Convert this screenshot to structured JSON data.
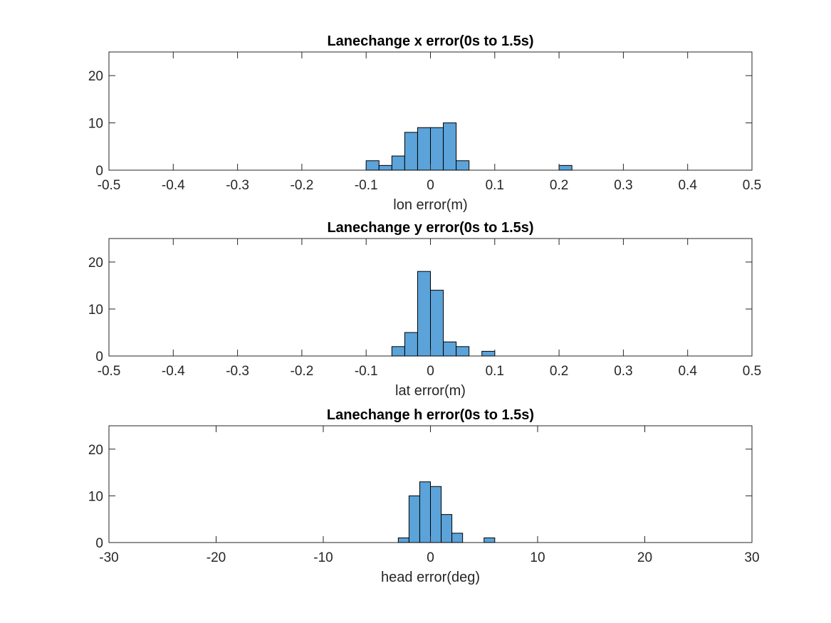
{
  "figure": {
    "bar_color": "#5ba3d9",
    "edge_color": "#000000",
    "axis_color": "#262626"
  },
  "chart_data": [
    {
      "type": "bar",
      "title": "Lanechange x error(0s to 1.5s)",
      "xlabel": "lon error(m)",
      "ylabel": "",
      "xlim": [
        -0.5,
        0.5
      ],
      "ylim": [
        0,
        25
      ],
      "xticks": [
        -0.5,
        -0.4,
        -0.3,
        -0.2,
        -0.1,
        0,
        0.1,
        0.2,
        0.3,
        0.4,
        0.5
      ],
      "xtick_labels": [
        "-0.5",
        "-0.4",
        "-0.3",
        "-0.2",
        "-0.1",
        "0",
        "0.1",
        "0.2",
        "0.3",
        "0.4",
        "0.5"
      ],
      "yticks": [
        0,
        10,
        20
      ],
      "ytick_labels": [
        "0",
        "10",
        "20"
      ],
      "grid": false,
      "bins": [
        {
          "x0": -0.1,
          "x1": -0.08,
          "count": 2
        },
        {
          "x0": -0.08,
          "x1": -0.06,
          "count": 1
        },
        {
          "x0": -0.06,
          "x1": -0.04,
          "count": 3
        },
        {
          "x0": -0.04,
          "x1": -0.02,
          "count": 8
        },
        {
          "x0": -0.02,
          "x1": 0.0,
          "count": 9
        },
        {
          "x0": 0.0,
          "x1": 0.02,
          "count": 9
        },
        {
          "x0": 0.02,
          "x1": 0.04,
          "count": 10
        },
        {
          "x0": 0.04,
          "x1": 0.06,
          "count": 2
        },
        {
          "x0": 0.2,
          "x1": 0.22,
          "count": 1
        }
      ]
    },
    {
      "type": "bar",
      "title": "Lanechange y error(0s to 1.5s)",
      "xlabel": "lat error(m)",
      "ylabel": "",
      "xlim": [
        -0.5,
        0.5
      ],
      "ylim": [
        0,
        25
      ],
      "xticks": [
        -0.5,
        -0.4,
        -0.3,
        -0.2,
        -0.1,
        0,
        0.1,
        0.2,
        0.3,
        0.4,
        0.5
      ],
      "xtick_labels": [
        "-0.5",
        "-0.4",
        "-0.3",
        "-0.2",
        "-0.1",
        "0",
        "0.1",
        "0.2",
        "0.3",
        "0.4",
        "0.5"
      ],
      "yticks": [
        0,
        10,
        20
      ],
      "ytick_labels": [
        "0",
        "10",
        "20"
      ],
      "grid": false,
      "bins": [
        {
          "x0": -0.06,
          "x1": -0.04,
          "count": 2
        },
        {
          "x0": -0.04,
          "x1": -0.02,
          "count": 5
        },
        {
          "x0": -0.02,
          "x1": 0.0,
          "count": 18
        },
        {
          "x0": 0.0,
          "x1": 0.02,
          "count": 14
        },
        {
          "x0": 0.02,
          "x1": 0.04,
          "count": 3
        },
        {
          "x0": 0.04,
          "x1": 0.06,
          "count": 2
        },
        {
          "x0": 0.08,
          "x1": 0.1,
          "count": 1
        }
      ]
    },
    {
      "type": "bar",
      "title": "Lanechange h error(0s to 1.5s)",
      "xlabel": "head error(deg)",
      "ylabel": "",
      "xlim": [
        -30,
        30
      ],
      "ylim": [
        0,
        25
      ],
      "xticks": [
        -30,
        -20,
        -10,
        0,
        10,
        20,
        30
      ],
      "xtick_labels": [
        "-30",
        "-20",
        "-10",
        "0",
        "10",
        "20",
        "30"
      ],
      "yticks": [
        0,
        10,
        20
      ],
      "ytick_labels": [
        "0",
        "10",
        "20"
      ],
      "grid": false,
      "bins": [
        {
          "x0": -3,
          "x1": -2,
          "count": 1
        },
        {
          "x0": -2,
          "x1": -1,
          "count": 10
        },
        {
          "x0": -1,
          "x1": 0,
          "count": 13
        },
        {
          "x0": 0,
          "x1": 1,
          "count": 12
        },
        {
          "x0": 1,
          "x1": 2,
          "count": 6
        },
        {
          "x0": 2,
          "x1": 3,
          "count": 2
        },
        {
          "x0": 5,
          "x1": 6,
          "count": 1
        }
      ]
    }
  ]
}
